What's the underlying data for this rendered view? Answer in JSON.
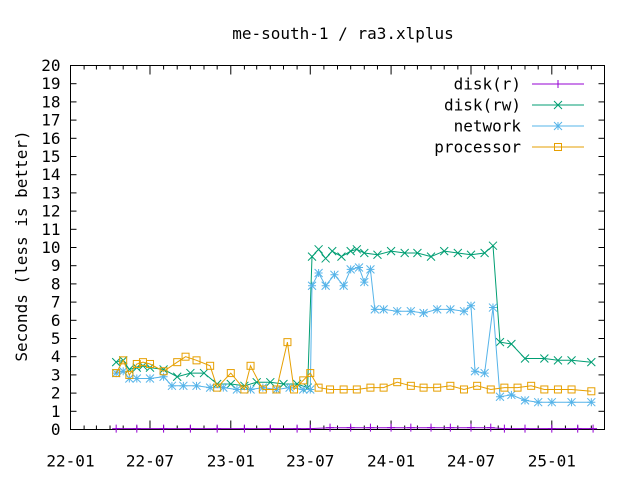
{
  "chart_data": {
    "type": "line",
    "title": "me-south-1 / ra3.xlplus",
    "ylabel": "Seconds (less is better)",
    "xlabel": "",
    "ylim": [
      0,
      20
    ],
    "y_ticks": [
      0,
      1,
      2,
      3,
      4,
      5,
      6,
      7,
      8,
      9,
      10,
      11,
      12,
      13,
      14,
      15,
      16,
      17,
      18,
      19,
      20
    ],
    "x_tick_labels": [
      "22-01",
      "22-07",
      "23-01",
      "23-07",
      "24-01",
      "24-07",
      "25-01"
    ],
    "x_axis_format": "yy-mm",
    "legend_position": "top-right",
    "grid": false,
    "series": [
      {
        "name": "disk(r)",
        "color": "#9400d3",
        "marker": "plus",
        "points": [
          [
            "2022-04-15",
            0.05
          ],
          [
            "2022-06-01",
            0.05
          ],
          [
            "2022-08-01",
            0.05
          ],
          [
            "2022-10-01",
            0.05
          ],
          [
            "2022-12-01",
            0.05
          ],
          [
            "2023-02-01",
            0.05
          ],
          [
            "2023-04-01",
            0.05
          ],
          [
            "2023-06-01",
            0.05
          ],
          [
            "2023-07-01",
            0.05
          ],
          [
            "2023-08-15",
            0.1
          ],
          [
            "2023-10-01",
            0.1
          ],
          [
            "2023-11-15",
            0.1
          ],
          [
            "2024-01-01",
            0.1
          ],
          [
            "2024-02-15",
            0.1
          ],
          [
            "2024-04-01",
            0.1
          ],
          [
            "2024-05-15",
            0.1
          ],
          [
            "2024-07-01",
            0.1
          ],
          [
            "2024-08-15",
            0.1
          ],
          [
            "2024-09-15",
            0.05
          ],
          [
            "2024-11-01",
            0.05
          ],
          [
            "2025-01-01",
            0.05
          ],
          [
            "2025-03-01",
            0.05
          ],
          [
            "2025-04-05",
            0.05
          ]
        ]
      },
      {
        "name": "disk(rw)",
        "color": "#009e73",
        "marker": "x",
        "points": [
          [
            "2022-04-15",
            3.7
          ],
          [
            "2022-05-01",
            3.8
          ],
          [
            "2022-05-15",
            3.3
          ],
          [
            "2022-06-01",
            3.4
          ],
          [
            "2022-06-15",
            3.5
          ],
          [
            "2022-07-01",
            3.4
          ],
          [
            "2022-08-01",
            3.3
          ],
          [
            "2022-09-01",
            2.9
          ],
          [
            "2022-10-01",
            3.1
          ],
          [
            "2022-11-01",
            3.1
          ],
          [
            "2022-12-01",
            2.5
          ],
          [
            "2023-01-01",
            2.5
          ],
          [
            "2023-02-01",
            2.4
          ],
          [
            "2023-03-01",
            2.6
          ],
          [
            "2023-04-01",
            2.6
          ],
          [
            "2023-05-01",
            2.5
          ],
          [
            "2023-06-01",
            2.5
          ],
          [
            "2023-06-25",
            2.3
          ],
          [
            "2023-07-05",
            9.5
          ],
          [
            "2023-07-20",
            9.9
          ],
          [
            "2023-08-05",
            9.4
          ],
          [
            "2023-08-20",
            9.8
          ],
          [
            "2023-09-10",
            9.5
          ],
          [
            "2023-10-01",
            9.8
          ],
          [
            "2023-10-15",
            9.9
          ],
          [
            "2023-11-01",
            9.7
          ],
          [
            "2023-12-01",
            9.6
          ],
          [
            "2024-01-01",
            9.8
          ],
          [
            "2024-02-01",
            9.7
          ],
          [
            "2024-03-01",
            9.7
          ],
          [
            "2024-04-01",
            9.5
          ],
          [
            "2024-05-01",
            9.8
          ],
          [
            "2024-06-01",
            9.7
          ],
          [
            "2024-07-01",
            9.6
          ],
          [
            "2024-08-01",
            9.7
          ],
          [
            "2024-08-20",
            10.1
          ],
          [
            "2024-09-05",
            4.8
          ],
          [
            "2024-10-01",
            4.7
          ],
          [
            "2024-11-01",
            3.9
          ],
          [
            "2024-12-15",
            3.9
          ],
          [
            "2025-01-15",
            3.8
          ],
          [
            "2025-02-15",
            3.8
          ],
          [
            "2025-04-01",
            3.7
          ]
        ]
      },
      {
        "name": "network",
        "color": "#56b4e9",
        "marker": "star",
        "points": [
          [
            "2022-04-15",
            3.1
          ],
          [
            "2022-05-01",
            3.2
          ],
          [
            "2022-05-15",
            2.8
          ],
          [
            "2022-06-01",
            2.8
          ],
          [
            "2022-07-01",
            2.8
          ],
          [
            "2022-08-01",
            2.9
          ],
          [
            "2022-08-20",
            2.4
          ],
          [
            "2022-09-15",
            2.4
          ],
          [
            "2022-10-15",
            2.4
          ],
          [
            "2022-11-15",
            2.3
          ],
          [
            "2022-12-15",
            2.3
          ],
          [
            "2023-01-15",
            2.2
          ],
          [
            "2023-02-15",
            2.2
          ],
          [
            "2023-03-15",
            2.3
          ],
          [
            "2023-04-15",
            2.2
          ],
          [
            "2023-05-15",
            2.3
          ],
          [
            "2023-06-15",
            2.2
          ],
          [
            "2023-07-01",
            2.2
          ],
          [
            "2023-07-05",
            7.9
          ],
          [
            "2023-07-20",
            8.6
          ],
          [
            "2023-08-05",
            7.9
          ],
          [
            "2023-08-25",
            8.5
          ],
          [
            "2023-09-15",
            7.9
          ],
          [
            "2023-10-01",
            8.8
          ],
          [
            "2023-10-20",
            8.9
          ],
          [
            "2023-11-01",
            8.1
          ],
          [
            "2023-11-15",
            8.8
          ],
          [
            "2023-11-25",
            6.6
          ],
          [
            "2023-12-15",
            6.6
          ],
          [
            "2024-01-15",
            6.5
          ],
          [
            "2024-02-15",
            6.5
          ],
          [
            "2024-03-15",
            6.4
          ],
          [
            "2024-04-15",
            6.6
          ],
          [
            "2024-05-15",
            6.6
          ],
          [
            "2024-06-15",
            6.5
          ],
          [
            "2024-07-01",
            6.8
          ],
          [
            "2024-07-10",
            3.2
          ],
          [
            "2024-08-01",
            3.1
          ],
          [
            "2024-08-20",
            6.7
          ],
          [
            "2024-09-05",
            1.8
          ],
          [
            "2024-10-01",
            1.9
          ],
          [
            "2024-11-01",
            1.6
          ],
          [
            "2024-12-01",
            1.5
          ],
          [
            "2025-01-01",
            1.5
          ],
          [
            "2025-02-15",
            1.5
          ],
          [
            "2025-04-01",
            1.5
          ]
        ]
      },
      {
        "name": "processor",
        "color": "#e69f00",
        "marker": "square",
        "points": [
          [
            "2022-04-15",
            3.1
          ],
          [
            "2022-05-01",
            3.8
          ],
          [
            "2022-05-15",
            3.0
          ],
          [
            "2022-06-01",
            3.6
          ],
          [
            "2022-06-15",
            3.7
          ],
          [
            "2022-07-01",
            3.6
          ],
          [
            "2022-08-01",
            3.2
          ],
          [
            "2022-09-01",
            3.7
          ],
          [
            "2022-09-20",
            4.0
          ],
          [
            "2022-10-15",
            3.8
          ],
          [
            "2022-11-15",
            3.5
          ],
          [
            "2022-12-01",
            2.3
          ],
          [
            "2023-01-01",
            3.1
          ],
          [
            "2023-02-01",
            2.2
          ],
          [
            "2023-02-15",
            3.5
          ],
          [
            "2023-03-15",
            2.2
          ],
          [
            "2023-04-15",
            2.2
          ],
          [
            "2023-05-10",
            4.8
          ],
          [
            "2023-05-25",
            2.2
          ],
          [
            "2023-06-15",
            2.7
          ],
          [
            "2023-07-01",
            3.1
          ],
          [
            "2023-07-20",
            2.3
          ],
          [
            "2023-08-15",
            2.2
          ],
          [
            "2023-09-15",
            2.2
          ],
          [
            "2023-10-15",
            2.2
          ],
          [
            "2023-11-15",
            2.3
          ],
          [
            "2023-12-15",
            2.3
          ],
          [
            "2024-01-15",
            2.6
          ],
          [
            "2024-02-15",
            2.4
          ],
          [
            "2024-03-15",
            2.3
          ],
          [
            "2024-04-15",
            2.3
          ],
          [
            "2024-05-15",
            2.4
          ],
          [
            "2024-06-15",
            2.2
          ],
          [
            "2024-07-15",
            2.4
          ],
          [
            "2024-08-15",
            2.2
          ],
          [
            "2024-09-15",
            2.3
          ],
          [
            "2024-10-15",
            2.3
          ],
          [
            "2024-11-15",
            2.4
          ],
          [
            "2024-12-15",
            2.2
          ],
          [
            "2025-01-15",
            2.2
          ],
          [
            "2025-02-15",
            2.2
          ],
          [
            "2025-04-01",
            2.1
          ]
        ]
      }
    ]
  }
}
